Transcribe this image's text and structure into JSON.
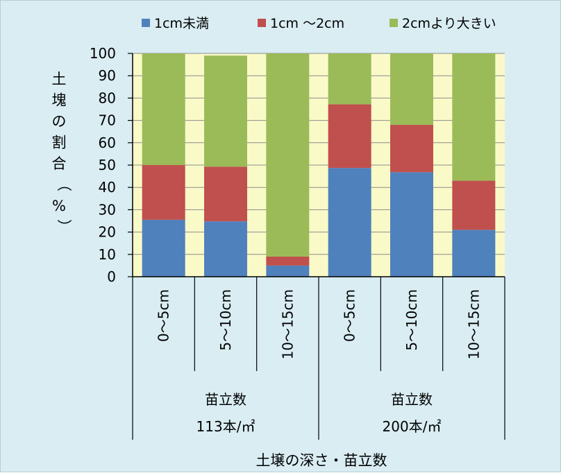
{
  "chart_data": {
    "type": "bar",
    "stacked": true,
    "ylabel": "土塊の割合（%）",
    "xlabel": "土壌の深さ・苗立数",
    "ylim": [
      0,
      100
    ],
    "yticks": [
      0,
      10,
      20,
      30,
      40,
      50,
      60,
      70,
      80,
      90,
      100
    ],
    "grid": true,
    "legend_position": "top",
    "categories": [
      "0～5cm",
      "5～10cm",
      "10～15cm",
      "0～5cm",
      "5～10cm",
      "10～15cm"
    ],
    "groups": [
      {
        "line1": "苗立数",
        "line2": "113本/㎡",
        "span": [
          0,
          2
        ]
      },
      {
        "line1": "苗立数",
        "line2": "200本/㎡",
        "span": [
          3,
          5
        ]
      }
    ],
    "series": [
      {
        "name": "1cm未満",
        "color": "#4f81bd",
        "values": [
          25.5,
          24.8,
          5,
          48.7,
          46.8,
          21
        ]
      },
      {
        "name": "1cm ～2cm",
        "color": "#c0504d",
        "values": [
          24.5,
          24.5,
          4,
          28.5,
          21.2,
          22
        ]
      },
      {
        "name": "2cmより大きい",
        "color": "#9bbb59",
        "values": [
          50,
          49.7,
          91,
          22.8,
          32,
          57
        ]
      }
    ],
    "plot_background": "#fafac8",
    "grid_color": "#8c8c8c"
  }
}
